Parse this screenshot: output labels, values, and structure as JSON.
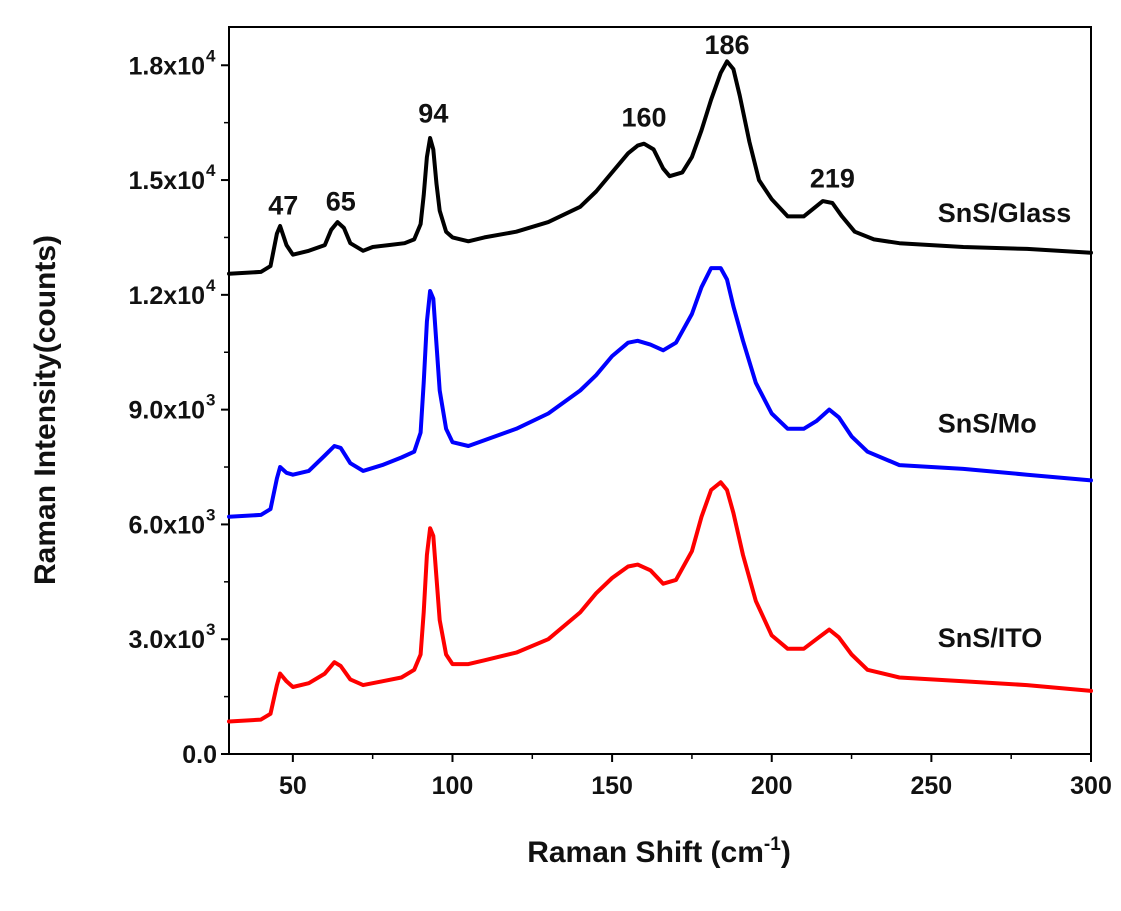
{
  "chart_data": {
    "type": "line",
    "xlabel": "Raman Shift (cm-1)",
    "ylabel": "Raman Intensity(counts)",
    "xlim": [
      30,
      300
    ],
    "ylim": [
      0,
      19000
    ],
    "x_ticks": [
      50,
      100,
      150,
      200,
      250,
      300
    ],
    "y_ticks": [
      {
        "value": 0,
        "mantissa": "0.0",
        "exponent": ""
      },
      {
        "value": 3000,
        "mantissa": "3.0x10",
        "exponent": "3"
      },
      {
        "value": 6000,
        "mantissa": "6.0x10",
        "exponent": "3"
      },
      {
        "value": 9000,
        "mantissa": "9.0x10",
        "exponent": "3"
      },
      {
        "value": 12000,
        "mantissa": "1.2x10",
        "exponent": "4"
      },
      {
        "value": 15000,
        "mantissa": "1.5x10",
        "exponent": "4"
      },
      {
        "value": 18000,
        "mantissa": "1.8x10",
        "exponent": "4"
      }
    ],
    "grid": false,
    "peak_annotations": [
      {
        "text": "47",
        "x": 47,
        "y": 14100
      },
      {
        "text": "65",
        "x": 65,
        "y": 14200
      },
      {
        "text": "94",
        "x": 94,
        "y": 16500
      },
      {
        "text": "160",
        "x": 160,
        "y": 16400
      },
      {
        "text": "186",
        "x": 186,
        "y": 18300
      },
      {
        "text": "219",
        "x": 219,
        "y": 14800
      }
    ],
    "series": [
      {
        "name": "SnS/Glass",
        "color": "#000000",
        "label_pos": {
          "x": 252,
          "y": 13900
        },
        "points": [
          [
            30,
            12550
          ],
          [
            40,
            12600
          ],
          [
            43,
            12750
          ],
          [
            45,
            13600
          ],
          [
            46,
            13800
          ],
          [
            48,
            13300
          ],
          [
            50,
            13050
          ],
          [
            55,
            13150
          ],
          [
            60,
            13300
          ],
          [
            62,
            13700
          ],
          [
            64,
            13900
          ],
          [
            66,
            13750
          ],
          [
            68,
            13350
          ],
          [
            72,
            13150
          ],
          [
            75,
            13250
          ],
          [
            80,
            13300
          ],
          [
            85,
            13350
          ],
          [
            88,
            13450
          ],
          [
            90,
            13850
          ],
          [
            91,
            14600
          ],
          [
            92,
            15600
          ],
          [
            93,
            16100
          ],
          [
            94,
            15800
          ],
          [
            95,
            14900
          ],
          [
            96,
            14200
          ],
          [
            98,
            13650
          ],
          [
            100,
            13500
          ],
          [
            105,
            13400
          ],
          [
            110,
            13500
          ],
          [
            120,
            13650
          ],
          [
            130,
            13900
          ],
          [
            140,
            14300
          ],
          [
            145,
            14700
          ],
          [
            150,
            15200
          ],
          [
            155,
            15700
          ],
          [
            158,
            15900
          ],
          [
            160,
            15950
          ],
          [
            163,
            15800
          ],
          [
            166,
            15300
          ],
          [
            168,
            15100
          ],
          [
            172,
            15200
          ],
          [
            175,
            15600
          ],
          [
            178,
            16300
          ],
          [
            181,
            17100
          ],
          [
            184,
            17800
          ],
          [
            186,
            18100
          ],
          [
            188,
            17900
          ],
          [
            190,
            17200
          ],
          [
            193,
            16000
          ],
          [
            196,
            15000
          ],
          [
            200,
            14500
          ],
          [
            205,
            14050
          ],
          [
            210,
            14050
          ],
          [
            213,
            14250
          ],
          [
            216,
            14450
          ],
          [
            219,
            14400
          ],
          [
            222,
            14050
          ],
          [
            226,
            13650
          ],
          [
            232,
            13450
          ],
          [
            240,
            13350
          ],
          [
            260,
            13250
          ],
          [
            280,
            13200
          ],
          [
            300,
            13100
          ]
        ]
      },
      {
        "name": "SnS/Mo",
        "color": "#0000ff",
        "label_pos": {
          "x": 252,
          "y": 8400
        },
        "points": [
          [
            30,
            6200
          ],
          [
            40,
            6250
          ],
          [
            43,
            6400
          ],
          [
            45,
            7200
          ],
          [
            46,
            7500
          ],
          [
            48,
            7350
          ],
          [
            50,
            7300
          ],
          [
            55,
            7400
          ],
          [
            60,
            7800
          ],
          [
            63,
            8050
          ],
          [
            65,
            8000
          ],
          [
            68,
            7600
          ],
          [
            72,
            7400
          ],
          [
            78,
            7550
          ],
          [
            84,
            7750
          ],
          [
            88,
            7900
          ],
          [
            90,
            8400
          ],
          [
            91,
            9700
          ],
          [
            92,
            11300
          ],
          [
            93,
            12100
          ],
          [
            94,
            11900
          ],
          [
            95,
            10700
          ],
          [
            96,
            9500
          ],
          [
            98,
            8500
          ],
          [
            100,
            8150
          ],
          [
            105,
            8050
          ],
          [
            110,
            8200
          ],
          [
            120,
            8500
          ],
          [
            130,
            8900
          ],
          [
            140,
            9500
          ],
          [
            145,
            9900
          ],
          [
            150,
            10400
          ],
          [
            155,
            10750
          ],
          [
            158,
            10800
          ],
          [
            162,
            10700
          ],
          [
            166,
            10550
          ],
          [
            170,
            10750
          ],
          [
            175,
            11500
          ],
          [
            178,
            12200
          ],
          [
            181,
            12700
          ],
          [
            184,
            12700
          ],
          [
            186,
            12400
          ],
          [
            188,
            11700
          ],
          [
            191,
            10800
          ],
          [
            195,
            9700
          ],
          [
            200,
            8900
          ],
          [
            205,
            8500
          ],
          [
            210,
            8500
          ],
          [
            214,
            8700
          ],
          [
            218,
            9000
          ],
          [
            221,
            8800
          ],
          [
            225,
            8300
          ],
          [
            230,
            7900
          ],
          [
            240,
            7550
          ],
          [
            260,
            7450
          ],
          [
            280,
            7300
          ],
          [
            300,
            7150
          ]
        ]
      },
      {
        "name": "SnS/ITO",
        "color": "#ff0000",
        "label_pos": {
          "x": 252,
          "y": 2800
        },
        "points": [
          [
            30,
            850
          ],
          [
            40,
            900
          ],
          [
            43,
            1050
          ],
          [
            45,
            1800
          ],
          [
            46,
            2100
          ],
          [
            48,
            1900
          ],
          [
            50,
            1750
          ],
          [
            55,
            1850
          ],
          [
            60,
            2100
          ],
          [
            63,
            2400
          ],
          [
            65,
            2300
          ],
          [
            68,
            1950
          ],
          [
            72,
            1800
          ],
          [
            78,
            1900
          ],
          [
            84,
            2000
          ],
          [
            88,
            2200
          ],
          [
            90,
            2600
          ],
          [
            91,
            3700
          ],
          [
            92,
            5200
          ],
          [
            93,
            5900
          ],
          [
            94,
            5700
          ],
          [
            95,
            4600
          ],
          [
            96,
            3500
          ],
          [
            98,
            2600
          ],
          [
            100,
            2350
          ],
          [
            105,
            2350
          ],
          [
            110,
            2450
          ],
          [
            120,
            2650
          ],
          [
            130,
            3000
          ],
          [
            140,
            3700
          ],
          [
            145,
            4200
          ],
          [
            150,
            4600
          ],
          [
            155,
            4900
          ],
          [
            158,
            4950
          ],
          [
            162,
            4800
          ],
          [
            166,
            4450
          ],
          [
            170,
            4550
          ],
          [
            175,
            5300
          ],
          [
            178,
            6200
          ],
          [
            181,
            6900
          ],
          [
            184,
            7100
          ],
          [
            186,
            6900
          ],
          [
            188,
            6300
          ],
          [
            191,
            5200
          ],
          [
            195,
            4000
          ],
          [
            200,
            3100
          ],
          [
            205,
            2750
          ],
          [
            210,
            2750
          ],
          [
            214,
            3000
          ],
          [
            218,
            3250
          ],
          [
            221,
            3050
          ],
          [
            225,
            2600
          ],
          [
            230,
            2200
          ],
          [
            240,
            2000
          ],
          [
            260,
            1900
          ],
          [
            280,
            1800
          ],
          [
            300,
            1650
          ]
        ]
      }
    ]
  }
}
